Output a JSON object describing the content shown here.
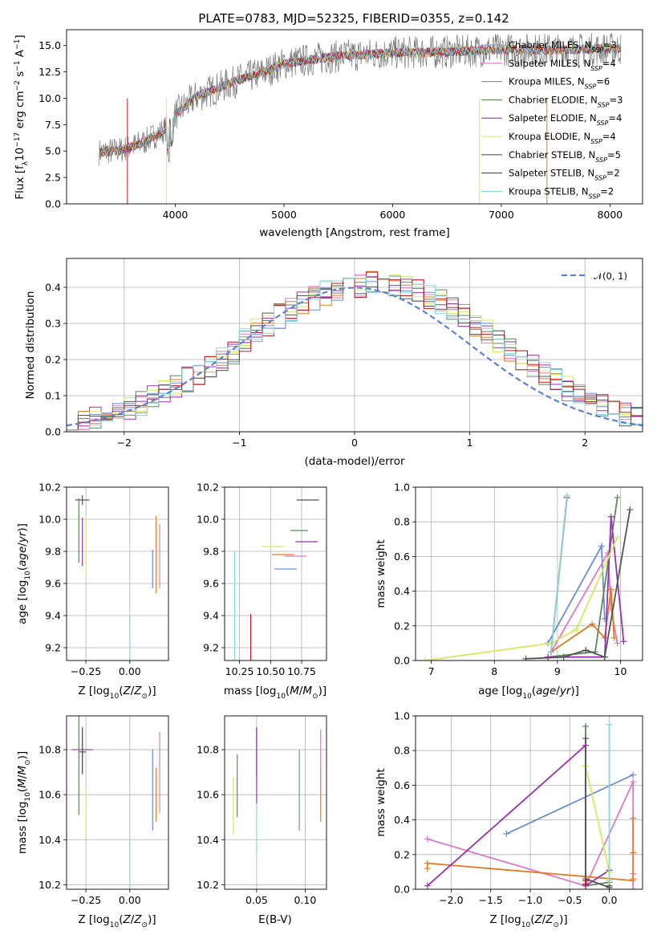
{
  "figure": {
    "title": "PLATE=0783, MJD=52325, FIBERID=0355, z=0.142"
  },
  "colors": {
    "Chabrier MILES": "#6b8dd6",
    "Salpeter MILES": "#e377c2",
    "Kroupa MILES": "#e07b24",
    "Chabrier ELODIE": "#5a8a5a",
    "Salpeter ELODIE": "#9b30b0",
    "Kroupa ELODIE": "#d4ea5a",
    "Chabrier STELIB": "#555555",
    "Salpeter STELIB": "#c0181e",
    "Kroupa STELIB": "#80d8e0",
    "gaussian": "#5b80d6",
    "data": "#7a7a7a"
  },
  "legend_entries": [
    {
      "name": "Chabrier MILES",
      "n": "3"
    },
    {
      "name": "Salpeter MILES",
      "n": "4"
    },
    {
      "name": "Kroupa MILES",
      "n": "6"
    },
    {
      "name": "Chabrier ELODIE",
      "n": "3"
    },
    {
      "name": "Salpeter ELODIE",
      "n": "4"
    },
    {
      "name": "Kroupa ELODIE",
      "n": "4"
    },
    {
      "name": "Chabrier STELIB",
      "n": "5"
    },
    {
      "name": "Salpeter STELIB",
      "n": "2"
    },
    {
      "name": "Kroupa STELIB",
      "n": "2"
    }
  ],
  "chart_data": [
    {
      "type": "line",
      "id": "spectrum",
      "xlabel": "wavelength [Angstrom, rest frame]",
      "ylabel": "Flux [f_λ 10^-17 erg cm^-2 s^-1 A^-1]",
      "xlim": [
        3000,
        8300
      ],
      "ylim": [
        0,
        16.5
      ],
      "xticks": [
        "4000",
        "5000",
        "6000",
        "7000",
        "8000"
      ],
      "yticks": [
        "0.0",
        "2.5",
        "5.0",
        "7.5",
        "10.0",
        "12.5",
        "15.0"
      ],
      "continuum": {
        "x": [
          3300,
          3500,
          3700,
          3900,
          4000,
          4200,
          4400,
          4600,
          4800,
          5000,
          5200,
          5500,
          6000,
          6500,
          7000,
          7500,
          8100
        ],
        "y": [
          4.9,
          5.1,
          5.8,
          7.0,
          8.5,
          10.2,
          11.0,
          11.8,
          12.4,
          13.3,
          13.6,
          14.0,
          14.3,
          14.4,
          14.6,
          14.6,
          14.7
        ]
      }
    },
    {
      "type": "histogram",
      "id": "residuals",
      "xlabel": "(data-model)/error",
      "ylabel": "Normed distribution",
      "xlim": [
        -2.5,
        2.5
      ],
      "ylim": [
        0,
        0.48
      ],
      "xticks": [
        "−2",
        "−1",
        "0",
        "1",
        "2"
      ],
      "yticks": [
        "0.0",
        "0.1",
        "0.2",
        "0.3",
        "0.4"
      ],
      "legend": "𝒩(0, 1)",
      "bin_edges_start": -2.5,
      "bin_width": 0.1,
      "base": [
        0.025,
        0.03,
        0.035,
        0.045,
        0.055,
        0.065,
        0.08,
        0.095,
        0.11,
        0.13,
        0.145,
        0.16,
        0.18,
        0.2,
        0.22,
        0.25,
        0.28,
        0.3,
        0.32,
        0.34,
        0.355,
        0.37,
        0.385,
        0.39,
        0.4,
        0.405,
        0.41,
        0.41,
        0.41,
        0.4,
        0.39,
        0.375,
        0.36,
        0.34,
        0.32,
        0.3,
        0.28,
        0.25,
        0.225,
        0.2,
        0.18,
        0.16,
        0.14,
        0.12,
        0.1,
        0.085,
        0.07,
        0.055,
        0.045,
        0.035
      ]
    },
    {
      "type": "errorbar",
      "id": "age-vs-Z",
      "xlabel": "Z [log10(Z/Z⊙)]",
      "ylabel": "age [log10(age/yr)]",
      "xlim": [
        -0.36,
        0.22
      ],
      "ylim": [
        9.12,
        10.2
      ],
      "xticks": [
        "−0.25",
        "0.00"
      ],
      "yticks": [
        "9.2",
        "9.4",
        "9.6",
        "9.8",
        "10.0",
        "10.2"
      ],
      "points": [
        {
          "model": "Chabrier STELIB",
          "x": -0.27,
          "y": 10.12,
          "xerr": 0.04,
          "yerr": 0.03
        },
        {
          "model": "Chabrier ELODIE",
          "x": -0.29,
          "y": 9.93,
          "xerr": 0.0,
          "yerr": 0.2
        },
        {
          "model": "Kroupa ELODIE",
          "x": -0.25,
          "y": 9.83,
          "xerr": 0.0,
          "yerr": 0.19
        },
        {
          "model": "Salpeter ELODIE",
          "x": -0.27,
          "y": 9.86,
          "xerr": 0.0,
          "yerr": 0.15
        },
        {
          "model": "Salpeter MILES",
          "x": 0.17,
          "y": 9.77,
          "xerr": 0.0,
          "yerr": 0.2
        },
        {
          "model": "Kroupa MILES",
          "x": 0.15,
          "y": 9.78,
          "xerr": 0.0,
          "yerr": 0.24
        },
        {
          "model": "Chabrier MILES",
          "x": 0.13,
          "y": 9.69,
          "xerr": 0.0,
          "yerr": 0.12
        },
        {
          "model": "Salpeter STELIB",
          "x": -0.1,
          "y": 9.16,
          "xerr": 0.0,
          "yerr": 0.0
        },
        {
          "model": "Kroupa STELIB",
          "x": 0.0,
          "y": 9.16,
          "xerr": 0.0,
          "yerr": 0.23
        }
      ]
    },
    {
      "type": "errorbar",
      "id": "age-vs-mass",
      "xlabel": "mass [log10(M/M⊙)]",
      "ylabel": "",
      "xlim": [
        10.13,
        10.95
      ],
      "ylim": [
        9.12,
        10.2
      ],
      "xticks": [
        "10.25",
        "10.50",
        "10.75"
      ],
      "yticks": [
        "9.2",
        "9.4",
        "9.6",
        "9.8",
        "10.0",
        "10.2"
      ],
      "points": [
        {
          "model": "Chabrier STELIB",
          "x": 10.8,
          "y": 10.12,
          "xerr": 0.09,
          "yerr": 0.0
        },
        {
          "model": "Chabrier ELODIE",
          "x": 10.73,
          "y": 9.93,
          "xerr": 0.07,
          "yerr": 0.0
        },
        {
          "model": "Kroupa ELODIE",
          "x": 10.52,
          "y": 9.83,
          "xerr": 0.09,
          "yerr": 0.0
        },
        {
          "model": "Salpeter ELODIE",
          "x": 10.79,
          "y": 9.86,
          "xerr": 0.09,
          "yerr": 0.0
        },
        {
          "model": "Salpeter MILES",
          "x": 10.7,
          "y": 9.77,
          "xerr": 0.09,
          "yerr": 0.0
        },
        {
          "model": "Kroupa MILES",
          "x": 10.6,
          "y": 9.78,
          "xerr": 0.09,
          "yerr": 0.0
        },
        {
          "model": "Chabrier MILES",
          "x": 10.62,
          "y": 9.69,
          "xerr": 0.09,
          "yerr": 0.0
        },
        {
          "model": "Salpeter STELIB",
          "x": 10.34,
          "y": 9.16,
          "xerr": 0.0,
          "yerr": 0.25
        },
        {
          "model": "Kroupa STELIB",
          "x": 10.21,
          "y": 9.16,
          "xerr": 0.0,
          "yerr": 0.64
        }
      ]
    },
    {
      "type": "line",
      "id": "massweight-vs-age",
      "xlabel": "age [log10(age/yr)]",
      "ylabel": "mass weight",
      "xlim": [
        6.75,
        10.35
      ],
      "ylim": [
        0,
        1
      ],
      "xticks": [
        "7",
        "8",
        "9",
        "10"
      ],
      "yticks": [
        "0.0",
        "0.2",
        "0.4",
        "0.6",
        "0.8",
        "1.0"
      ],
      "series": [
        {
          "model": "Chabrier MILES",
          "x": [
            8.85,
            9.7,
            9.75
          ],
          "y": [
            0.1,
            0.66,
            0.24
          ]
        },
        {
          "model": "Salpeter MILES",
          "x": [
            8.9,
            9.8,
            9.85,
            9.95
          ],
          "y": [
            0.05,
            0.62,
            0.3,
            0.1
          ]
        },
        {
          "model": "Kroupa MILES",
          "x": [
            8.9,
            9.55,
            9.75,
            9.85,
            9.9
          ],
          "y": [
            0.05,
            0.21,
            0.13,
            0.41,
            0.13
          ]
        },
        {
          "model": "Chabrier ELODIE",
          "x": [
            8.85,
            9.6,
            9.95
          ],
          "y": [
            0.02,
            0.05,
            0.94
          ]
        },
        {
          "model": "Salpeter ELODIE",
          "x": [
            8.85,
            9.75,
            9.85,
            10.05
          ],
          "y": [
            0.02,
            0.02,
            0.83,
            0.11
          ]
        },
        {
          "model": "Kroupa ELODIE",
          "x": [
            6.9,
            8.9,
            9.3,
            9.95
          ],
          "y": [
            0.0,
            0.1,
            0.18,
            0.71
          ]
        },
        {
          "model": "Chabrier STELIB",
          "x": [
            8.5,
            9.1,
            9.45,
            9.75,
            10.15
          ],
          "y": [
            0.01,
            0.02,
            0.06,
            0.02,
            0.87
          ]
        },
        {
          "model": "Salpeter STELIB",
          "x": [
            8.9,
            9.15
          ],
          "y": [
            0.05,
            0.94
          ]
        },
        {
          "model": "Kroupa STELIB",
          "x": [
            8.9,
            9.15
          ],
          "y": [
            0.05,
            0.95
          ]
        }
      ]
    },
    {
      "type": "errorbar",
      "id": "mass-vs-Z",
      "xlabel": "Z [log10(Z/Z⊙)]",
      "ylabel": "mass [log10(M/M⊙)]",
      "xlim": [
        -0.36,
        0.22
      ],
      "ylim": [
        10.18,
        10.95
      ],
      "xticks": [
        "−0.25",
        "0.00"
      ],
      "yticks": [
        "10.2",
        "10.4",
        "10.6",
        "10.8"
      ],
      "points": [
        {
          "model": "Salpeter ELODIE",
          "x": -0.27,
          "y": 10.8,
          "xerr": 0.06,
          "yerr": 0.1
        },
        {
          "model": "Chabrier STELIB",
          "x": -0.27,
          "y": 10.79,
          "xerr": 0.02,
          "yerr": 0.1
        },
        {
          "model": "Chabrier ELODIE",
          "x": -0.29,
          "y": 10.73,
          "xerr": 0.0,
          "yerr": 0.22
        },
        {
          "model": "Kroupa ELODIE",
          "x": -0.25,
          "y": 10.52,
          "xerr": 0.0,
          "yerr": 0.1
        },
        {
          "model": "Salpeter MILES",
          "x": 0.17,
          "y": 10.7,
          "xerr": 0.0,
          "yerr": 0.18
        },
        {
          "model": "Kroupa MILES",
          "x": 0.15,
          "y": 10.6,
          "xerr": 0.0,
          "yerr": 0.12
        },
        {
          "model": "Chabrier MILES",
          "x": 0.13,
          "y": 10.62,
          "xerr": 0.0,
          "yerr": 0.18
        },
        {
          "model": "Salpeter STELIB",
          "x": -0.1,
          "y": 10.34,
          "xerr": 0.0,
          "yerr": 0.0
        },
        {
          "model": "Kroupa STELIB",
          "x": 0.0,
          "y": 10.21,
          "xerr": 0.0,
          "yerr": 0.2
        }
      ]
    },
    {
      "type": "errorbar",
      "id": "mass-vs-EBV",
      "xlabel": "E(B-V)",
      "ylabel": "",
      "xlim": [
        0.017,
        0.122
      ],
      "ylim": [
        10.18,
        10.95
      ],
      "xticks": [
        "0.05",
        "0.10"
      ],
      "yticks": [
        "10.2",
        "10.4",
        "10.6",
        "10.8"
      ],
      "points": [
        {
          "model": "Kroupa ELODIE",
          "x": 0.026,
          "y": 10.55,
          "xerr": 0.0,
          "yerr": 0.13
        },
        {
          "model": "Chabrier ELODIE",
          "x": 0.03,
          "y": 10.64,
          "xerr": 0.0,
          "yerr": 0.14
        },
        {
          "model": "Chabrier STELIB",
          "x": 0.05,
          "y": 10.79,
          "xerr": 0.0,
          "yerr": 0.11
        },
        {
          "model": "Salpeter ELODIE",
          "x": 0.05,
          "y": 10.73,
          "xerr": 0.0,
          "yerr": 0.17
        },
        {
          "model": "Kroupa STELIB",
          "x": 0.05,
          "y": 10.45,
          "xerr": 0.0,
          "yerr": 0.11
        },
        {
          "model": "Chabrier MILES",
          "x": 0.094,
          "y": 10.62,
          "xerr": 0.0,
          "yerr": 0.18
        },
        {
          "model": "Kroupa MILES",
          "x": 0.116,
          "y": 10.6,
          "xerr": 0.0,
          "yerr": 0.12
        },
        {
          "model": "Salpeter MILES",
          "x": 0.116,
          "y": 10.75,
          "xerr": 0.0,
          "yerr": 0.14
        }
      ]
    },
    {
      "type": "line",
      "id": "massweight-vs-Z",
      "xlabel": "Z [log10(Z/Z⊙)]",
      "ylabel": "mass weight",
      "xlim": [
        -2.45,
        0.42
      ],
      "ylim": [
        0,
        1
      ],
      "xticks": [
        "−2.0",
        "−1.5",
        "−1.0",
        "−0.5",
        "0.0"
      ],
      "yticks": [
        "0.0",
        "0.2",
        "0.4",
        "0.6",
        "0.8",
        "1.0"
      ],
      "series": [
        {
          "model": "Chabrier MILES",
          "x": [
            -1.3,
            0.3
          ],
          "y": [
            0.32,
            0.66
          ]
        },
        {
          "model": "Salpeter MILES",
          "x": [
            -2.3,
            -0.3,
            0.3,
            0.3,
            0.3
          ],
          "y": [
            0.29,
            0.02,
            0.62,
            0.09,
            0.0
          ]
        },
        {
          "model": "Kroupa MILES",
          "x": [
            -2.3,
            -2.3,
            0.3,
            0.3,
            0.3,
            0.3
          ],
          "y": [
            0.12,
            0.15,
            0.05,
            0.41,
            0.21,
            0.06
          ]
        },
        {
          "model": "Chabrier ELODIE",
          "x": [
            -0.3,
            -0.3,
            0.0
          ],
          "y": [
            0.94,
            0.02,
            0.04
          ]
        },
        {
          "model": "Salpeter ELODIE",
          "x": [
            -2.3,
            -0.3,
            -0.3,
            0.0
          ],
          "y": [
            0.02,
            0.83,
            0.02,
            0.11
          ]
        },
        {
          "model": "Kroupa ELODIE",
          "x": [
            -0.3,
            0.0,
            0.0
          ],
          "y": [
            0.71,
            0.1,
            0.0
          ]
        },
        {
          "model": "Chabrier STELIB",
          "x": [
            -0.3,
            -0.3,
            0.0,
            0.0
          ],
          "y": [
            0.87,
            0.06,
            0.01,
            0.02
          ]
        },
        {
          "model": "Salpeter STELIB",
          "x": [
            -0.3,
            -0.3
          ],
          "y": [
            0.05,
            0.03
          ]
        },
        {
          "model": "Kroupa STELIB",
          "x": [
            0.0,
            0.0
          ],
          "y": [
            0.95,
            0.05
          ]
        }
      ]
    }
  ]
}
